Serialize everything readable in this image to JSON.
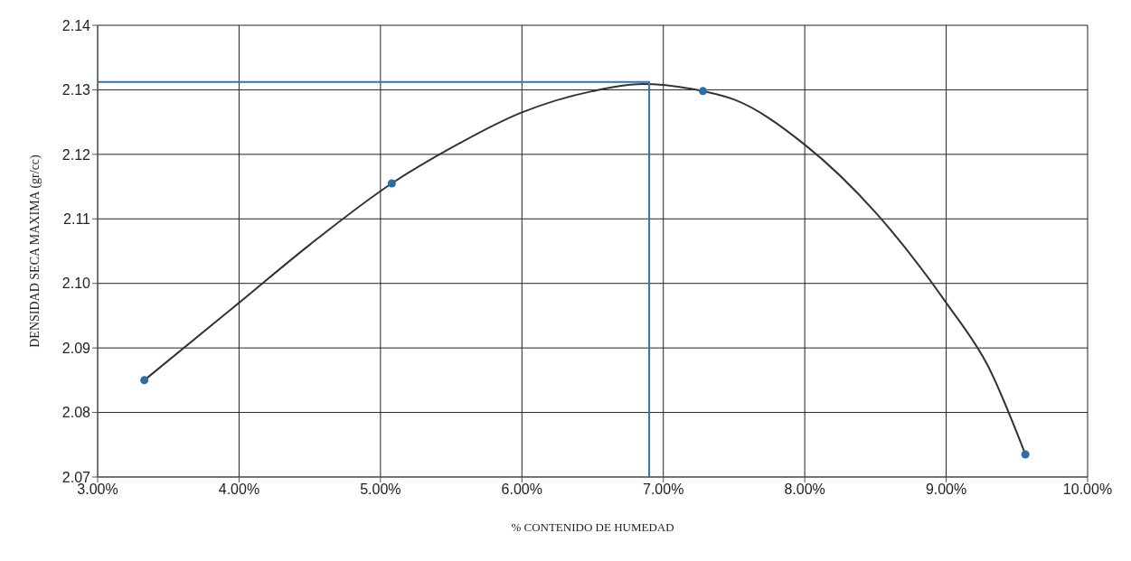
{
  "chart_data": {
    "type": "scatter",
    "xlabel": "% CONTENIDO DE HUMEDAD",
    "ylabel": "DENSIDAD SECA MAXIMA  (gr/cc)",
    "xlim": [
      3,
      10
    ],
    "ylim": [
      2.07,
      2.14
    ],
    "xticks": [
      {
        "value": 3,
        "label": "3.00%"
      },
      {
        "value": 4,
        "label": "4.00%"
      },
      {
        "value": 5,
        "label": "5.00%"
      },
      {
        "value": 6,
        "label": "6.00%"
      },
      {
        "value": 7,
        "label": "7.00%"
      },
      {
        "value": 8,
        "label": "8.00%"
      },
      {
        "value": 9,
        "label": "9.00%"
      },
      {
        "value": 10,
        "label": "10.00%"
      }
    ],
    "yticks": [
      2.07,
      2.08,
      2.09,
      {
        "value": 2.1,
        "label": "2.10"
      },
      2.11,
      2.12,
      2.13,
      2.14
    ],
    "grid": true,
    "marker": "circle",
    "series": [
      {
        "type": "line",
        "color": "#333333",
        "marker": "none",
        "x": [
          3.33,
          4.0,
          4.5,
          5.08,
          5.5,
          6.0,
          6.5,
          6.85,
          7.28,
          7.5,
          8.0,
          8.5,
          9.0,
          9.3,
          9.56
        ],
        "values": [
          2.085,
          2.097,
          2.106,
          2.1155,
          2.121,
          2.1265,
          2.1298,
          2.1309,
          2.1298,
          2.1285,
          2.1215,
          2.111,
          2.097,
          2.087,
          2.0735
        ]
      },
      {
        "type": "line",
        "color": "#2e75b6",
        "marker": "none",
        "x": [
          3,
          6.9,
          6.9
        ],
        "values": [
          2.1312,
          2.1312,
          2.07
        ]
      },
      {
        "color": "#2e6da4",
        "x": [
          3.33,
          5.08,
          7.28,
          9.56
        ],
        "values": [
          2.085,
          2.1155,
          2.1298,
          2.0735
        ]
      }
    ]
  }
}
